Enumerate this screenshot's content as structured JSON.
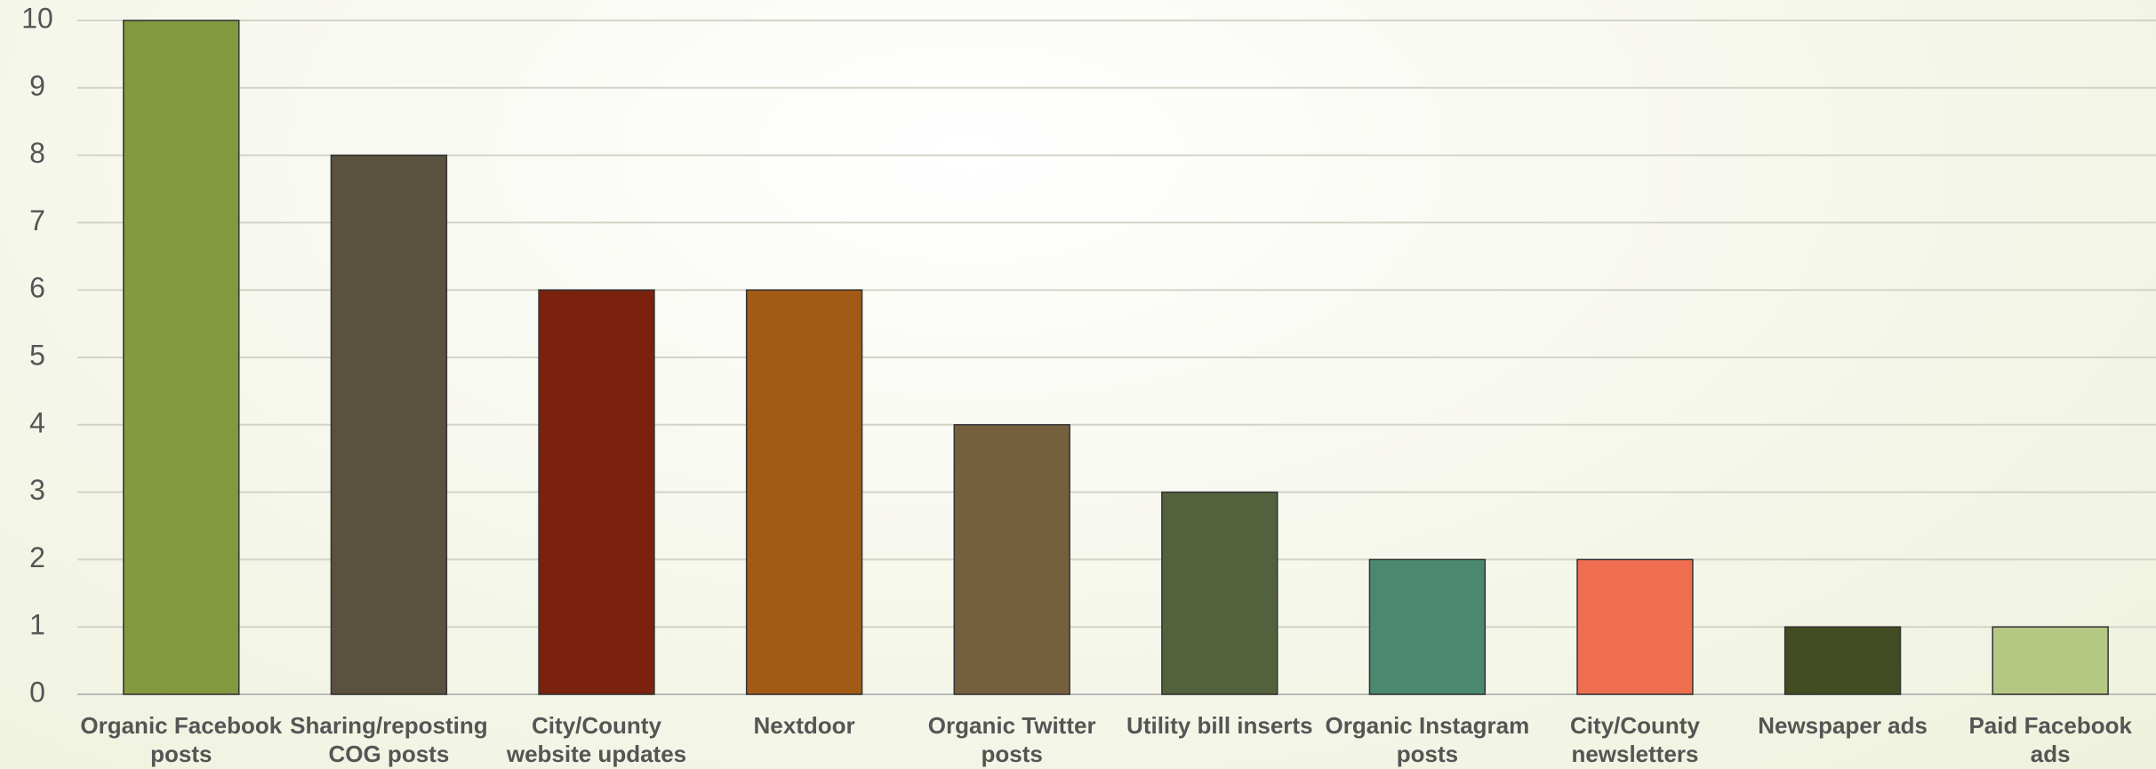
{
  "chart_data": {
    "type": "bar",
    "categories": [
      "Organic Facebook posts",
      "Sharing/reposting COG posts",
      "City/County website updates",
      "Nextdoor",
      "Organic Twitter posts",
      "Utility bill inserts",
      "Organic Instagram posts",
      "City/County newsletters",
      "Newspaper ads",
      "Paid Facebook ads"
    ],
    "values": [
      10,
      8,
      6,
      6,
      4,
      3,
      2,
      2,
      1,
      1
    ],
    "colors": [
      "#83993f",
      "#5a513e",
      "#7a220e",
      "#a25b16",
      "#765f3d",
      "#53623c",
      "#4a8870",
      "#ee6e4f",
      "#414c22",
      "#b5c883"
    ],
    "ylim": [
      0,
      10
    ],
    "yticks": [
      0,
      1,
      2,
      3,
      4,
      5,
      6,
      7,
      8,
      9,
      10
    ],
    "grid": true
  }
}
